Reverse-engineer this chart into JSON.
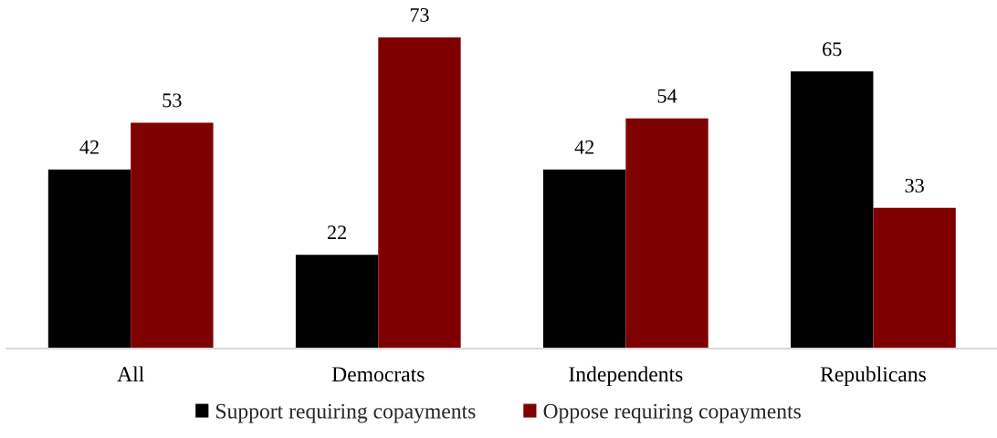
{
  "chart_data": {
    "type": "bar",
    "categories": [
      "All",
      "Democrats",
      "Independents",
      "Republicans"
    ],
    "series": [
      {
        "name": "Support requiring copayments",
        "color": "#000000",
        "values": [
          42,
          22,
          42,
          65
        ]
      },
      {
        "name": "Oppose requiring copayments",
        "color": "#7f0000",
        "values": [
          53,
          73,
          54,
          33
        ]
      }
    ],
    "data_labels": true,
    "legend": "bottom"
  }
}
